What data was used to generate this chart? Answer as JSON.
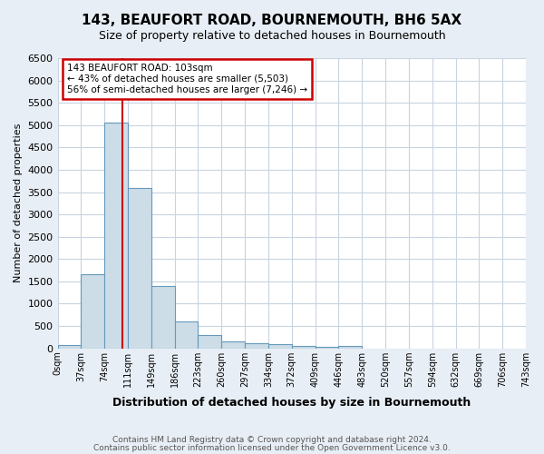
{
  "title": "143, BEAUFORT ROAD, BOURNEMOUTH, BH6 5AX",
  "subtitle": "Size of property relative to detached houses in Bournemouth",
  "xlabel": "Distribution of detached houses by size in Bournemouth",
  "ylabel": "Number of detached properties",
  "bin_edges": [
    0,
    37,
    74,
    111,
    148,
    185,
    222,
    259,
    296,
    333,
    370,
    407,
    444,
    481,
    518,
    555,
    592,
    629,
    666,
    703,
    740
  ],
  "bin_labels": [
    "0sqm",
    "37sqm",
    "74sqm",
    "111sqm",
    "149sqm",
    "186sqm",
    "223sqm",
    "260sqm",
    "297sqm",
    "334sqm",
    "372sqm",
    "409sqm",
    "446sqm",
    "483sqm",
    "520sqm",
    "557sqm",
    "594sqm",
    "632sqm",
    "669sqm",
    "706sqm",
    "743sqm"
  ],
  "bar_heights": [
    75,
    1650,
    5050,
    3600,
    1400,
    600,
    300,
    150,
    120,
    100,
    50,
    35,
    55,
    0,
    0,
    0,
    0,
    0,
    0,
    0
  ],
  "bar_color": "#ccdde8",
  "bar_edge_color": "#6699bb",
  "vline_x": 103,
  "vline_color": "#cc0000",
  "annotation_line1": "143 BEAUFORT ROAD: 103sqm",
  "annotation_line2": "← 43% of detached houses are smaller (5,503)",
  "annotation_line3": "56% of semi-detached houses are larger (7,246) →",
  "annotation_box_color": "#cc0000",
  "ylim": [
    0,
    6500
  ],
  "yticks": [
    0,
    500,
    1000,
    1500,
    2000,
    2500,
    3000,
    3500,
    4000,
    4500,
    5000,
    5500,
    6000,
    6500
  ],
  "footnote1": "Contains HM Land Registry data © Crown copyright and database right 2024.",
  "footnote2": "Contains public sector information licensed under the Open Government Licence v3.0.",
  "bg_color": "#e8eef5",
  "plot_bg_color": "#ffffff",
  "grid_color": "#c8d4e0",
  "title_fontsize": 11,
  "subtitle_fontsize": 9
}
